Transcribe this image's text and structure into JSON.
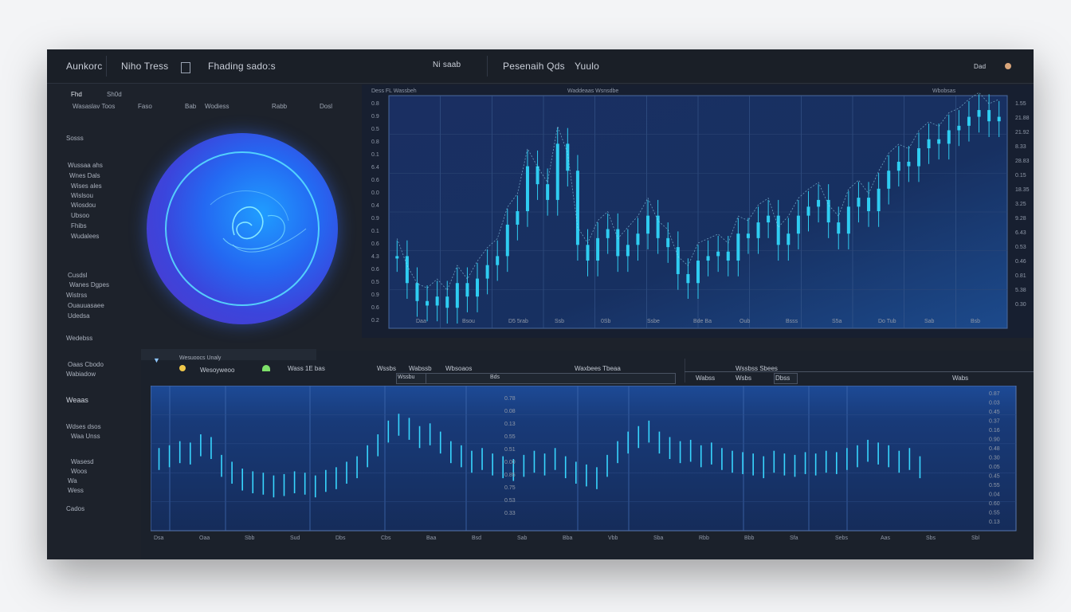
{
  "header": {
    "app_name": "Aunkorc",
    "nav": [
      "Niho Tress",
      "Fhading sado:s"
    ],
    "center_label": "Ni saab",
    "right_title": "Pesenaih Qds",
    "right_sub": "Yuulo",
    "corner_label": "Dad"
  },
  "toolbar": {
    "items": [
      "Fhd",
      "Sh0d",
      "Wasaslav Toos",
      "Faso",
      "Bab",
      "Wodiess",
      "Rabb",
      "Dosl"
    ]
  },
  "sidebar": {
    "items": [
      "Sosss",
      "Wussaa ahs",
      "Wnes Dals",
      "Wises ales",
      "Wislsou",
      "Wiosdou",
      "Ubsoo",
      "Fhibs",
      "Wudalees",
      "Cusdsl",
      "Wanes Dgpes",
      "Wistrss",
      "Ouauuasaee",
      "Udedsa",
      "Wedebss",
      "Oaas Cbodo",
      "Wabiadow",
      "Weaas",
      "Wdses dsos",
      "Waa Unss",
      "Wasesd",
      "Woos",
      "Wa",
      "Wess",
      "Cados"
    ]
  },
  "top_chart": {
    "header_left": "Dess FL Wassbeh",
    "header_center": "Waddeaas Wsnsdbe",
    "header_right": "Wbobsas",
    "right_values": [
      "1.55",
      "21.88",
      "21.92",
      "8.33",
      "28.83",
      "0.15",
      "18.35",
      "3.25",
      "9.28",
      "6.43",
      "0.53",
      "0.46",
      "0.81",
      "5.38",
      "0.30"
    ],
    "left_values": [
      "0.8",
      "0.9",
      "0.5",
      "0.8",
      "0.1",
      "6.4",
      "0.6",
      "0.0",
      "0.4",
      "0.9",
      "0.1",
      "0.6",
      "4.3",
      "0.6",
      "0.5",
      "0.9",
      "0.6",
      "0.2"
    ],
    "x_labels": [
      "Daa",
      "Bsou",
      "D5 5rab",
      "Ssb",
      "0Sb",
      "Ssbe",
      "Bde Ba",
      "Oub",
      "Bsss",
      "S5a",
      "Do Tub",
      "Sab",
      "Bsb"
    ]
  },
  "bottom_panel": {
    "tab_label": "Wesuoocs Unaly",
    "legend_label": "Wesoyweoo",
    "tabs": [
      "Wass 1E bas",
      "Wssbs",
      "Wabssb",
      "Wbsoaos",
      "Wssbu",
      "Bds",
      "Waxbees Tbeaa"
    ],
    "section_label": "Wssbss Sbees",
    "section_tabs": [
      "Wabss",
      "Wsbs",
      "Dbss",
      "Wabs"
    ],
    "right_values": [
      "0.87",
      "0.03",
      "0.45",
      "0.37",
      "0.16",
      "0.90",
      "0.48",
      "0.30",
      "0.05",
      "0.45",
      "0.55",
      "0.04",
      "0.60",
      "0.55",
      "0.13"
    ],
    "mid_values": [
      "0.78",
      "0.08",
      "0.13",
      "0.55",
      "0.51",
      "0.00",
      "0.85",
      "0.75",
      "0.53",
      "0.33"
    ],
    "x_labels": [
      "Dsa",
      "Oaa",
      "Sbb",
      "Sud",
      "Dbs",
      "Cbs",
      "Baa",
      "Bsd",
      "Sab",
      "Bba",
      "Vbb",
      "Sba",
      "Rbb",
      "Bbb",
      "Sfa",
      "Sebs",
      "Aas",
      "Sbs",
      "Sbl"
    ]
  },
  "colors": {
    "accent": "#38d6ff",
    "candle": "#2fcdf2",
    "chart_bg": "#162a55",
    "orb": "#2b6cf0",
    "positive": "#7ee06a",
    "warning": "#f0c84a"
  },
  "chart_data": [
    {
      "type": "line",
      "title": "",
      "xlabel": "",
      "ylabel": "",
      "x_tick_labels": [
        "Daa",
        "Bsou",
        "D5 5rab",
        "Ssb",
        "0Sb",
        "Ssbe",
        "Bde Ba",
        "Oub",
        "Bsss",
        "S5a",
        "Do Tub",
        "Sab",
        "Bsb"
      ],
      "ylim": [
        0,
        100
      ],
      "series": [
        {
          "values": [
            30,
            18,
            10,
            8,
            12,
            7,
            18,
            12,
            20,
            26,
            30,
            44,
            50,
            70,
            62,
            55,
            80,
            68,
            35,
            28,
            38,
            42,
            30,
            35,
            40,
            48,
            38,
            34,
            22,
            18,
            28,
            30,
            32,
            28,
            40,
            38,
            45,
            48,
            35,
            40,
            48,
            52,
            55,
            45,
            40,
            52,
            56,
            50,
            60,
            68,
            72,
            70,
            78,
            82,
            80,
            86,
            88,
            92,
            95,
            90,
            92
          ]
        }
      ]
    },
    {
      "type": "line",
      "title": "",
      "xlabel": "",
      "ylabel": "",
      "x_tick_labels": [
        "Dsa",
        "Oaa",
        "Sbb",
        "Sud",
        "Dbs",
        "Cbs",
        "Baa",
        "Bsd",
        "Sab",
        "Bba",
        "Vbb",
        "Sba",
        "Rbb",
        "Bbb",
        "Sfa",
        "Sebs",
        "Aas",
        "Sbs",
        "Sbl"
      ],
      "ylim": [
        0,
        100
      ],
      "series": [
        {
          "values": [
            50,
            52,
            55,
            54,
            60,
            58,
            45,
            40,
            35,
            33,
            32,
            30,
            31,
            33,
            32,
            30,
            34,
            36,
            40,
            44,
            52,
            60,
            70,
            75,
            72,
            66,
            68,
            62,
            55,
            52,
            48,
            50,
            46,
            44,
            42,
            45,
            48,
            46,
            50,
            44,
            40,
            38,
            36,
            45,
            55,
            62,
            66,
            70,
            62,
            58,
            55,
            56,
            52,
            54,
            50,
            48,
            47,
            46,
            44,
            48,
            46,
            45,
            47,
            46,
            48,
            47,
            50,
            52,
            56,
            54,
            52,
            48,
            50,
            44
          ]
        }
      ]
    }
  ]
}
